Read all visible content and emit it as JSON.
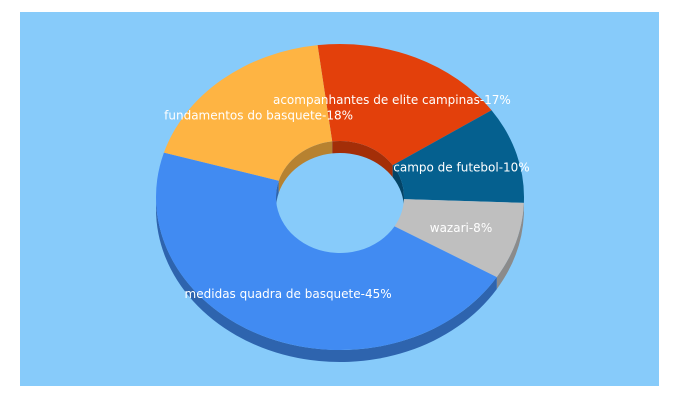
{
  "chart_data": {
    "type": "pie",
    "variant": "3d-donut",
    "background": "#87cbfa",
    "slices": [
      {
        "label": "acompanhantes de elite campinas",
        "value": 17,
        "color": "#e3400b",
        "side_color": "#a32e08"
      },
      {
        "label": "campo de futebol",
        "value": 10,
        "color": "#05608f",
        "side_color": "#034467"
      },
      {
        "label": "wazari",
        "value": 8,
        "color": "#bfbfbf",
        "side_color": "#8b8b8b"
      },
      {
        "label": "medidas quadra de basquete",
        "value": 45,
        "color": "#418bf2",
        "side_color": "#2e64ae"
      },
      {
        "label": "fundamentos do basquete",
        "value": 18,
        "color": "#feb443",
        "side_color": "#b78230"
      }
    ]
  }
}
